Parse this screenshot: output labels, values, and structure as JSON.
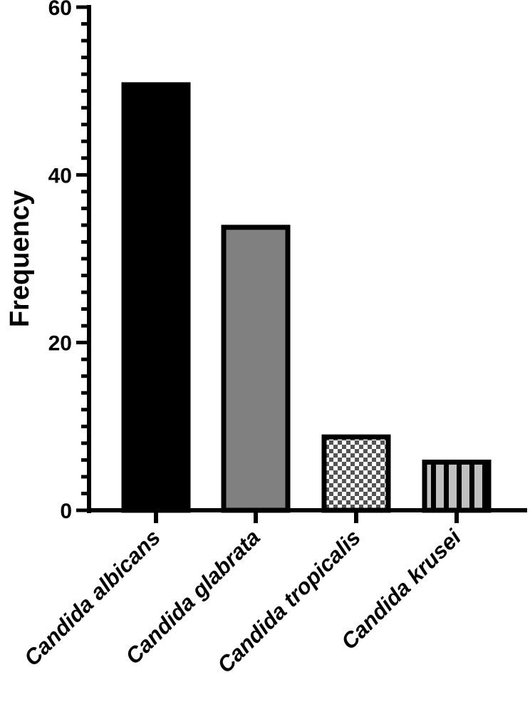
{
  "chart_data": {
    "type": "bar",
    "title": "",
    "xlabel": "",
    "ylabel": "Frequency",
    "ylim": [
      0,
      60
    ],
    "yticks": [
      0,
      20,
      40,
      60
    ],
    "ytick_labels": [
      "0",
      "20",
      "40",
      "60"
    ],
    "minor_tick_step": 2,
    "grid": false,
    "legend": null,
    "categories": [
      "Candida albicans",
      "Candida glabrata",
      "Candida tropicalis",
      "Candida krusei"
    ],
    "values": [
      51,
      34,
      9,
      6
    ],
    "bar_styles": [
      {
        "fill": "#000000",
        "pattern": "solid"
      },
      {
        "fill": "#808080",
        "pattern": "solid"
      },
      {
        "fill": "#555555",
        "pattern": "checkerboard"
      },
      {
        "fill": "#c0c0c0",
        "pattern": "vertical-stripes"
      }
    ],
    "xtick_label_rotation": -45,
    "xtick_label_style": "bold italic"
  }
}
